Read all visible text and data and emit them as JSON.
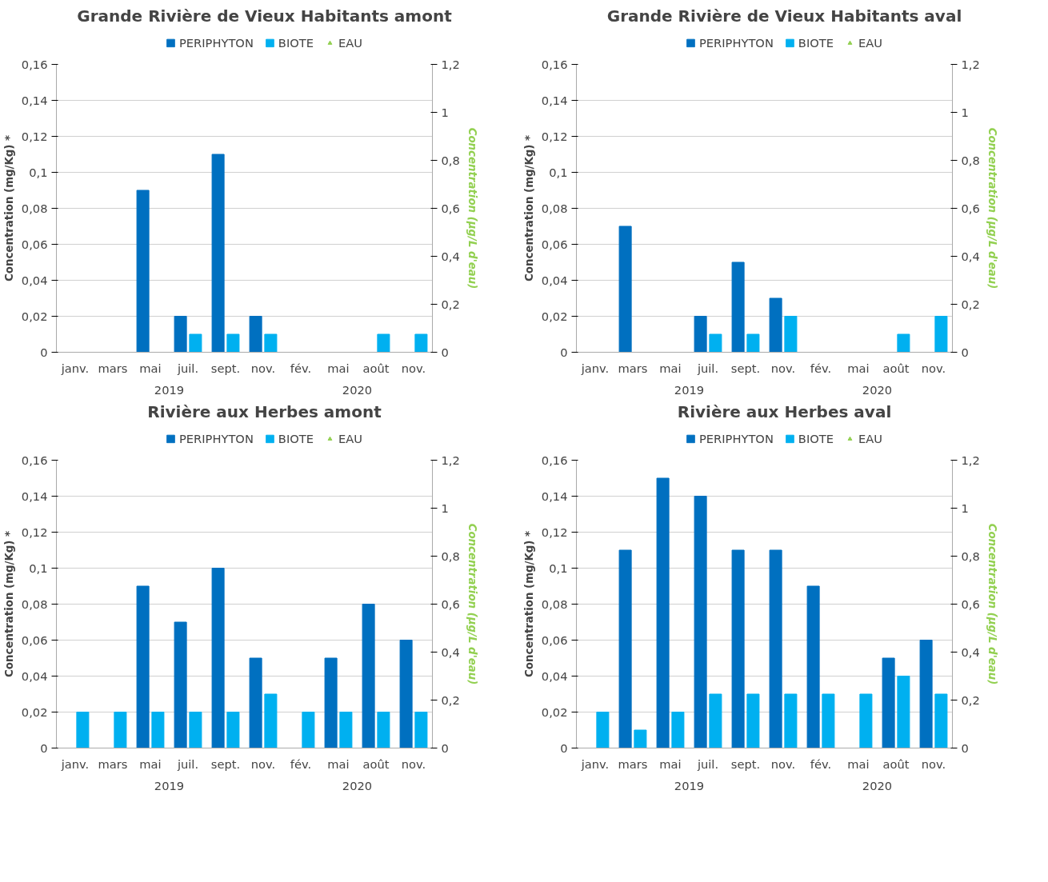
{
  "chart_data": [
    {
      "type": "bar",
      "title": "Grande Rivière de Vieux Habitants amont",
      "ylabel": "Concentration (mg/Kg) *",
      "y2label": "Concentration (µg/L d'eau)",
      "categories": [
        "janv.",
        "mars",
        "mai",
        "juil.",
        "sept.",
        "nov.",
        "fév.",
        "mai",
        "août",
        "nov."
      ],
      "annotations": [
        "2019",
        "2020"
      ],
      "series": [
        {
          "name": "PERIPHYTON",
          "color": "#0070c0",
          "values": [
            null,
            null,
            0.09,
            0.02,
            0.11,
            0.02,
            null,
            null,
            null,
            null
          ]
        },
        {
          "name": "BIOTE",
          "color": "#00b0f0",
          "values": [
            null,
            null,
            null,
            0.01,
            0.01,
            0.01,
            null,
            null,
            0.01,
            0.01
          ]
        },
        {
          "name": "EAU",
          "color": "#92d050",
          "type": "scatter",
          "marker": "triangle",
          "axis": "y2",
          "values": [
            null,
            null,
            null,
            null,
            null,
            null,
            null,
            null,
            null,
            null
          ]
        }
      ],
      "ylim": [
        0,
        0.16
      ],
      "yticks": [
        0,
        {
          "value": 0.02,
          "label": "0,02"
        },
        {
          "value": 0.04,
          "label": "0,04"
        },
        {
          "value": 0.06,
          "label": "0,06"
        },
        {
          "value": 0.08,
          "label": "0,08"
        },
        {
          "value": 0.1,
          "label": "0,1"
        },
        {
          "value": 0.12,
          "label": "0,12"
        },
        {
          "value": 0.14,
          "label": "0,14"
        },
        {
          "value": 0.16,
          "label": "0,16"
        }
      ],
      "y2lim": [
        0,
        1.2
      ],
      "y2ticks": [
        0,
        {
          "value": 0.2,
          "label": "0,2"
        },
        {
          "value": 0.4,
          "label": "0,4"
        },
        {
          "value": 0.6,
          "label": "0,6"
        },
        {
          "value": 0.8,
          "label": "0,8"
        },
        1,
        {
          "value": 1.2,
          "label": "1,2"
        }
      ],
      "grid": "y",
      "legend": "top"
    },
    {
      "type": "bar",
      "title": "Grande Rivière de Vieux Habitants aval",
      "ylabel": "Concentration (mg/Kg) *",
      "y2label": "Concentration (µg/L d'eau)",
      "categories": [
        "janv.",
        "mars",
        "mai",
        "juil.",
        "sept.",
        "nov.",
        "fév.",
        "mai",
        "août",
        "nov."
      ],
      "annotations": [
        "2019",
        "2020"
      ],
      "series": [
        {
          "name": "PERIPHYTON",
          "color": "#0070c0",
          "values": [
            null,
            0.07,
            null,
            0.02,
            0.05,
            0.03,
            null,
            null,
            null,
            null
          ]
        },
        {
          "name": "BIOTE",
          "color": "#00b0f0",
          "values": [
            null,
            null,
            null,
            0.01,
            0.01,
            0.02,
            null,
            null,
            0.01,
            0.02
          ]
        },
        {
          "name": "EAU",
          "color": "#92d050",
          "type": "scatter",
          "marker": "triangle",
          "axis": "y2",
          "values": [
            null,
            null,
            null,
            null,
            null,
            null,
            null,
            null,
            null,
            null
          ]
        }
      ],
      "ylim": [
        0,
        0.16
      ],
      "yticks": [
        0,
        {
          "value": 0.02,
          "label": "0,02"
        },
        {
          "value": 0.04,
          "label": "0,04"
        },
        {
          "value": 0.06,
          "label": "0,06"
        },
        {
          "value": 0.08,
          "label": "0,08"
        },
        {
          "value": 0.1,
          "label": "0,1"
        },
        {
          "value": 0.12,
          "label": "0,12"
        },
        {
          "value": 0.14,
          "label": "0,14"
        },
        {
          "value": 0.16,
          "label": "0,16"
        }
      ],
      "y2lim": [
        0,
        1.2
      ],
      "y2ticks": [
        0,
        {
          "value": 0.2,
          "label": "0,2"
        },
        {
          "value": 0.4,
          "label": "0,4"
        },
        {
          "value": 0.6,
          "label": "0,6"
        },
        {
          "value": 0.8,
          "label": "0,8"
        },
        1,
        {
          "value": 1.2,
          "label": "1,2"
        }
      ],
      "grid": "y",
      "legend": "top"
    },
    {
      "type": "bar",
      "title": "Rivière aux Herbes amont",
      "ylabel": "Concentration (mg/Kg) *",
      "y2label": "Concentration (µg/L d'eau)",
      "categories": [
        "janv.",
        "mars",
        "mai",
        "juil.",
        "sept.",
        "nov.",
        "fév.",
        "mai",
        "août",
        "nov."
      ],
      "annotations": [
        "2019",
        "2020"
      ],
      "series": [
        {
          "name": "PERIPHYTON",
          "color": "#0070c0",
          "values": [
            null,
            null,
            0.09,
            0.07,
            0.1,
            0.05,
            null,
            0.05,
            0.08,
            0.06
          ]
        },
        {
          "name": "BIOTE",
          "color": "#00b0f0",
          "values": [
            0.02,
            0.02,
            0.02,
            0.02,
            0.02,
            0.03,
            0.02,
            0.02,
            0.02,
            0.02
          ]
        },
        {
          "name": "EAU",
          "color": "#92d050",
          "type": "scatter",
          "marker": "triangle",
          "axis": "y2",
          "values": [
            null,
            null,
            null,
            null,
            null,
            null,
            null,
            null,
            null,
            null
          ]
        }
      ],
      "ylim": [
        0,
        0.16
      ],
      "yticks": [
        0,
        {
          "value": 0.02,
          "label": "0,02"
        },
        {
          "value": 0.04,
          "label": "0,04"
        },
        {
          "value": 0.06,
          "label": "0,06"
        },
        {
          "value": 0.08,
          "label": "0,08"
        },
        {
          "value": 0.1,
          "label": "0,1"
        },
        {
          "value": 0.12,
          "label": "0,12"
        },
        {
          "value": 0.14,
          "label": "0,14"
        },
        {
          "value": 0.16,
          "label": "0,16"
        }
      ],
      "y2lim": [
        0,
        1.2
      ],
      "y2ticks": [
        0,
        {
          "value": 0.2,
          "label": "0,2"
        },
        {
          "value": 0.4,
          "label": "0,4"
        },
        {
          "value": 0.6,
          "label": "0,6"
        },
        {
          "value": 0.8,
          "label": "0,8"
        },
        1,
        {
          "value": 1.2,
          "label": "1,2"
        }
      ],
      "grid": "y",
      "legend": "top"
    },
    {
      "type": "bar",
      "title": "Rivière aux Herbes aval",
      "ylabel": "Concentration (mg/Kg) *",
      "y2label": "Concentration (µg/L d'eau)",
      "categories": [
        "janv.",
        "mars",
        "mai",
        "juil.",
        "sept.",
        "nov.",
        "fév.",
        "mai",
        "août",
        "nov."
      ],
      "annotations": [
        "2019",
        "2020"
      ],
      "series": [
        {
          "name": "PERIPHYTON",
          "color": "#0070c0",
          "values": [
            null,
            0.11,
            0.15,
            0.14,
            0.11,
            0.11,
            0.09,
            null,
            0.05,
            0.06
          ]
        },
        {
          "name": "BIOTE",
          "color": "#00b0f0",
          "values": [
            0.02,
            0.01,
            0.02,
            0.03,
            0.03,
            0.03,
            0.03,
            0.03,
            0.04,
            0.03
          ]
        },
        {
          "name": "EAU",
          "color": "#92d050",
          "type": "scatter",
          "marker": "triangle",
          "axis": "y2",
          "values": [
            null,
            null,
            null,
            null,
            null,
            null,
            null,
            null,
            null,
            null
          ]
        }
      ],
      "ylim": [
        0,
        0.16
      ],
      "yticks": [
        0,
        {
          "value": 0.02,
          "label": "0,02"
        },
        {
          "value": 0.04,
          "label": "0,04"
        },
        {
          "value": 0.06,
          "label": "0,06"
        },
        {
          "value": 0.08,
          "label": "0,08"
        },
        {
          "value": 0.1,
          "label": "0,1"
        },
        {
          "value": 0.12,
          "label": "0,12"
        },
        {
          "value": 0.14,
          "label": "0,14"
        },
        {
          "value": 0.16,
          "label": "0,16"
        }
      ],
      "y2lim": [
        0,
        1.2
      ],
      "y2ticks": [
        0,
        {
          "value": 0.2,
          "label": "0,2"
        },
        {
          "value": 0.4,
          "label": "0,4"
        },
        {
          "value": 0.6,
          "label": "0,6"
        },
        {
          "value": 0.8,
          "label": "0,8"
        },
        1,
        {
          "value": 1.2,
          "label": "1,2"
        }
      ],
      "grid": "y",
      "legend": "top"
    }
  ]
}
